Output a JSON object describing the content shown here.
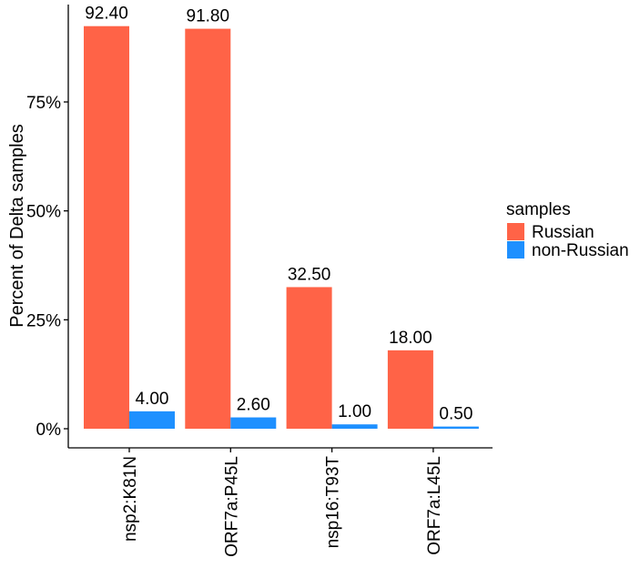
{
  "chart_data": {
    "type": "bar",
    "categories": [
      "nsp2:K81N",
      "ORF7a:P45L",
      "nsp16:T93T",
      "ORF7a:L45L"
    ],
    "series": [
      {
        "name": "Russian",
        "color": "#FF6347",
        "values": [
          92.4,
          91.8,
          32.5,
          18.0
        ],
        "labels": [
          "92.40",
          "91.80",
          "32.50",
          "18.00"
        ]
      },
      {
        "name": "non-Russian",
        "color": "#1E90FF",
        "values": [
          4.0,
          2.6,
          1.0,
          0.5
        ],
        "labels": [
          "4.00",
          "2.60",
          "1.00",
          "0.50"
        ]
      }
    ],
    "xlabel": "",
    "ylabel": "Percent of Delta samples",
    "ylim": [
      0,
      100
    ],
    "yticks": [
      0,
      25,
      50,
      75
    ],
    "ytick_labels": [
      "0%",
      "25%",
      "50%",
      "75%"
    ],
    "legend": {
      "title": "samples",
      "position": "right"
    },
    "grid": false
  }
}
